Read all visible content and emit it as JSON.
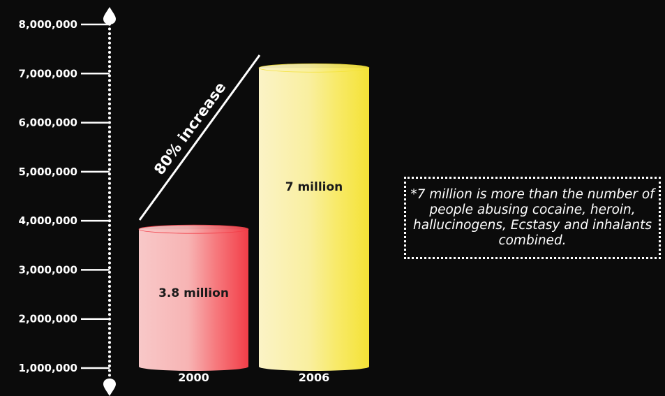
{
  "chart_data": {
    "type": "bar",
    "categories": [
      "2000",
      "2006"
    ],
    "values": [
      3800000,
      7000000
    ],
    "data_labels": [
      "3.8 million",
      "7 million"
    ],
    "yticks": [
      1000000,
      2000000,
      3000000,
      4000000,
      5000000,
      6000000,
      7000000,
      8000000
    ],
    "ytick_labels": [
      "1,000,000",
      "2,000,000",
      "3,000,000",
      "4,000,000",
      "5,000,000",
      "6,000,000",
      "7,000,000",
      "8,000,000"
    ],
    "ylim": [
      0,
      8000000
    ],
    "annotation": "80% increase",
    "note": "*7 million is more than the number of people abusing cocaine, heroin, hallucinogens, Ecstasy and inhalants combined.",
    "colors": {
      "background": "#0b0b0b",
      "bar_2000": "#f5505a",
      "bar_2006": "#f5e63a",
      "axis": "#ffffff",
      "text": "#ffffff",
      "bar_label": "#1a1a1a"
    }
  }
}
